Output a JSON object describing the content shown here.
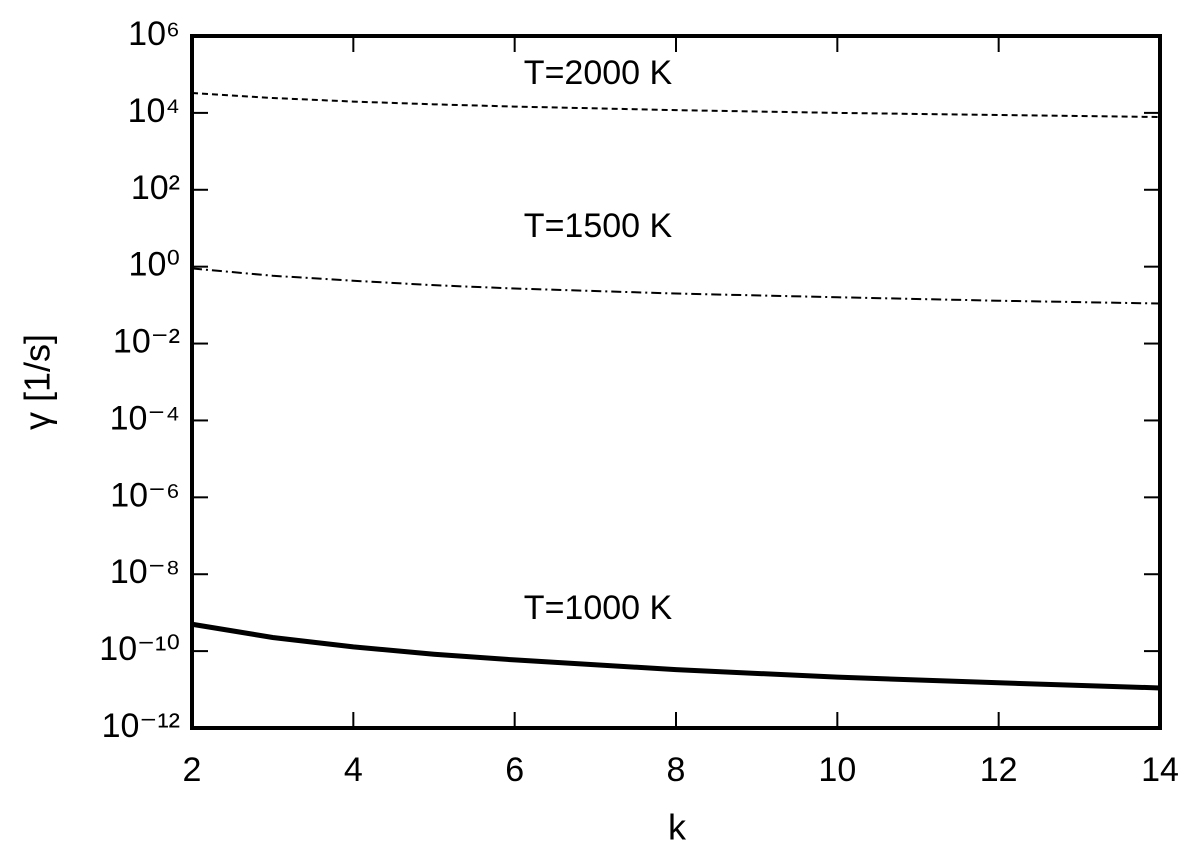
{
  "chart_data": {
    "type": "line",
    "x_label": "k",
    "y_label": "γ [1/s]",
    "y_scale": "log",
    "xlim": [
      2,
      14
    ],
    "xticks": [
      2,
      4,
      6,
      8,
      10,
      12,
      14
    ],
    "ylim": [
      1e-12,
      1000000.0
    ],
    "yticks": [
      {
        "value": 1e-12,
        "label": "10⁻¹²"
      },
      {
        "value": 1e-10,
        "label": "10⁻¹⁰"
      },
      {
        "value": 1e-08,
        "label": "10⁻⁸"
      },
      {
        "value": 1e-06,
        "label": "10⁻⁶"
      },
      {
        "value": 0.0001,
        "label": "10⁻⁴"
      },
      {
        "value": 0.01,
        "label": "10⁻²"
      },
      {
        "value": 1,
        "label": "10⁰"
      },
      {
        "value": 100,
        "label": "10²"
      },
      {
        "value": 10000,
        "label": "10⁴"
      },
      {
        "value": 1000000,
        "label": "10⁶"
      }
    ],
    "x": [
      2,
      3,
      4,
      5,
      6,
      8,
      10,
      12,
      14
    ],
    "series": [
      {
        "name": "T=2000 K",
        "color": "#000000",
        "dash": "dashed",
        "values": [
          33000,
          24400,
          19700,
          16700,
          14600,
          11800,
          10000,
          8800,
          7800
        ]
      },
      {
        "name": "T=1500 K",
        "color": "#000000",
        "dash": "dashdot",
        "values": [
          0.9,
          0.58,
          0.43,
          0.33,
          0.27,
          0.2,
          0.16,
          0.13,
          0.11
        ]
      },
      {
        "name": "T=1000 K",
        "color": "#000000",
        "dash": "solid",
        "values": [
          5e-10,
          2.26e-10,
          1.29e-10,
          8.3e-11,
          5.9e-11,
          3.3e-11,
          2.1e-11,
          1.5e-11,
          1.1e-11
        ]
      }
    ]
  }
}
